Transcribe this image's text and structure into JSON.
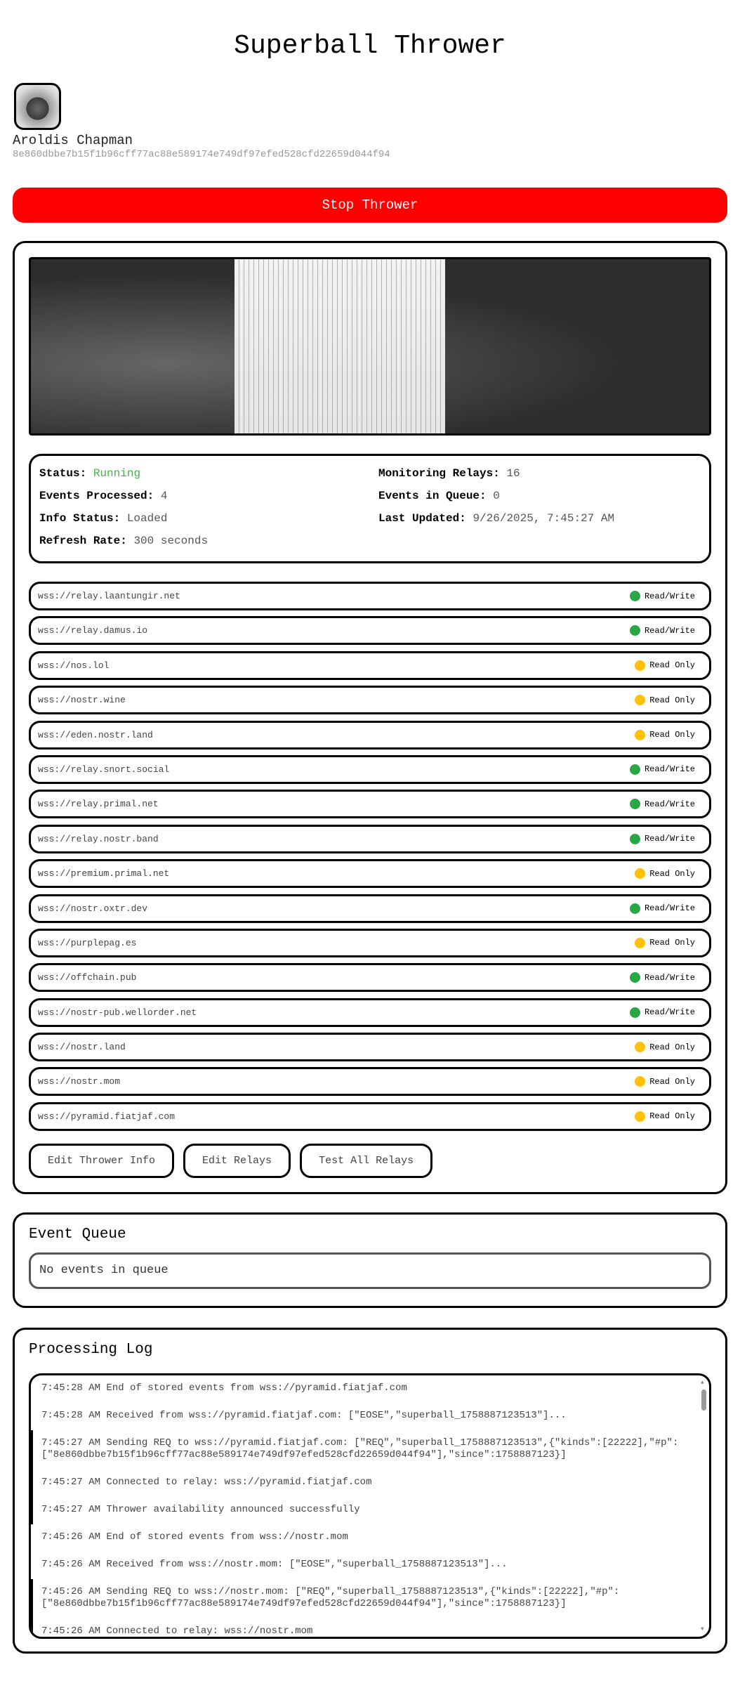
{
  "header": {
    "title": "Superball Thrower"
  },
  "profile": {
    "name": "Aroldis Chapman",
    "pubkey": "8e860dbbe7b15f1b96cff77ac88e589174e749df97efed528cfd22659d044f94"
  },
  "stop_button": "Stop Thrower",
  "status": {
    "status_label": "Status:",
    "status_value": "Running",
    "status_color": "#4caf50",
    "relays_label": "Monitoring Relays:",
    "relays_value": "16",
    "events_label": "Events Processed:",
    "events_value": "4",
    "queue_label": "Events in Queue:",
    "queue_value": "0",
    "info_label": "Info Status:",
    "info_value": "Loaded",
    "updated_label": "Last Updated:",
    "updated_value": "9/26/2025, 7:45:27 AM",
    "refresh_label": "Refresh Rate:",
    "refresh_value": "300 seconds"
  },
  "colors": {
    "read_write": "#28a745",
    "read_only": "#ffc107",
    "stop": "#ff0000"
  },
  "relays": [
    {
      "url": "wss://relay.laantungir.net",
      "mode": "Read/Write"
    },
    {
      "url": "wss://relay.damus.io",
      "mode": "Read/Write"
    },
    {
      "url": "wss://nos.lol",
      "mode": "Read Only"
    },
    {
      "url": "wss://nostr.wine",
      "mode": "Read Only"
    },
    {
      "url": "wss://eden.nostr.land",
      "mode": "Read Only"
    },
    {
      "url": "wss://relay.snort.social",
      "mode": "Read/Write"
    },
    {
      "url": "wss://relay.primal.net",
      "mode": "Read/Write"
    },
    {
      "url": "wss://relay.nostr.band",
      "mode": "Read/Write"
    },
    {
      "url": "wss://premium.primal.net",
      "mode": "Read Only"
    },
    {
      "url": "wss://nostr.oxtr.dev",
      "mode": "Read/Write"
    },
    {
      "url": "wss://purplepag.es",
      "mode": "Read Only"
    },
    {
      "url": "wss://offchain.pub",
      "mode": "Read/Write"
    },
    {
      "url": "wss://nostr-pub.wellorder.net",
      "mode": "Read/Write"
    },
    {
      "url": "wss://nostr.land",
      "mode": "Read Only"
    },
    {
      "url": "wss://nostr.mom",
      "mode": "Read Only"
    },
    {
      "url": "wss://pyramid.fiatjaf.com",
      "mode": "Read Only"
    }
  ],
  "actions": {
    "edit_info": "Edit Thrower Info",
    "edit_relays": "Edit Relays",
    "test_relays": "Test All Relays"
  },
  "queue": {
    "title": "Event Queue",
    "empty": "No events in queue"
  },
  "log": {
    "title": "Processing Log",
    "entries": [
      "7:45:28 AM End of stored events from wss://pyramid.fiatjaf.com",
      "7:45:28 AM Received from wss://pyramid.fiatjaf.com: [\"EOSE\",\"superball_1758887123513\"]...",
      "7:45:27 AM Sending REQ to wss://pyramid.fiatjaf.com: [\"REQ\",\"superball_1758887123513\",{\"kinds\":[22222],\"#p\":[\"8e860dbbe7b15f1b96cff77ac88e589174e749df97efed528cfd22659d044f94\"],\"since\":1758887123}]",
      "7:45:27 AM Connected to relay: wss://pyramid.fiatjaf.com",
      "7:45:27 AM Thrower availability announced successfully",
      "7:45:26 AM End of stored events from wss://nostr.mom",
      "7:45:26 AM Received from wss://nostr.mom: [\"EOSE\",\"superball_1758887123513\"]...",
      "7:45:26 AM Sending REQ to wss://nostr.mom: [\"REQ\",\"superball_1758887123513\",{\"kinds\":[22222],\"#p\":[\"8e860dbbe7b15f1b96cff77ac88e589174e749df97efed528cfd22659d044f94\"],\"since\":1758887123}]",
      "7:45:26 AM Connected to relay: wss://nostr.mom"
    ]
  }
}
